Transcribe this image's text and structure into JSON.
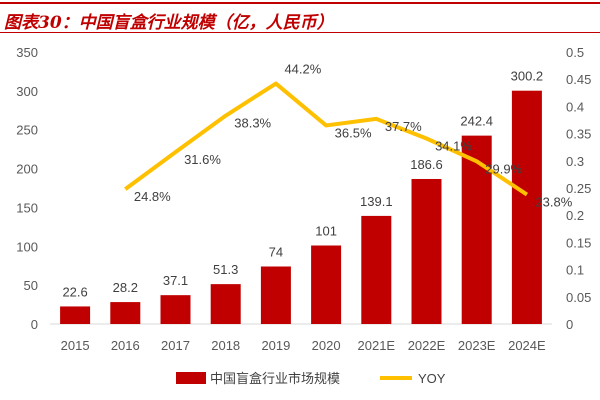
{
  "title": "图表30：中国盲盒行业规模（亿，人民币）",
  "colors": {
    "bar": "#c00000",
    "line": "#ffc000",
    "title": "#c00000"
  },
  "chart_data": {
    "type": "bar+line",
    "categories": [
      "2015",
      "2016",
      "2017",
      "2018",
      "2019",
      "2020",
      "2021E",
      "2022E",
      "2023E",
      "2024E"
    ],
    "series": [
      {
        "name": "中国盲盒行业市场规模",
        "type": "bar",
        "axis": "left",
        "values": [
          22.6,
          28.2,
          37.1,
          51.3,
          74,
          101,
          139.1,
          186.6,
          242.4,
          300.2
        ],
        "labels": [
          "22.6",
          "28.2",
          "37.1",
          "51.3",
          "74",
          "101",
          "139.1",
          "186.6",
          "242.4",
          "300.2"
        ]
      },
      {
        "name": "YOY",
        "type": "line",
        "axis": "right",
        "values": [
          null,
          0.248,
          0.316,
          0.383,
          0.442,
          0.365,
          0.377,
          0.341,
          0.299,
          0.238
        ],
        "labels": [
          "",
          "24.8%",
          "31.6%",
          "38.3%",
          "44.2%",
          "36.5%",
          "37.7%",
          "34.1%",
          "29.9%",
          "23.8%"
        ]
      }
    ],
    "left_axis": {
      "range": [
        0,
        350
      ],
      "ticks": [
        "0",
        "50",
        "100",
        "150",
        "200",
        "250",
        "300",
        "350"
      ]
    },
    "right_axis": {
      "range": [
        0,
        0.5
      ],
      "ticks": [
        "0",
        "0.05",
        "0.1",
        "0.15",
        "0.2",
        "0.25",
        "0.3",
        "0.35",
        "0.4",
        "0.45",
        "0.5"
      ]
    },
    "grid": false,
    "legend": "bottom"
  }
}
